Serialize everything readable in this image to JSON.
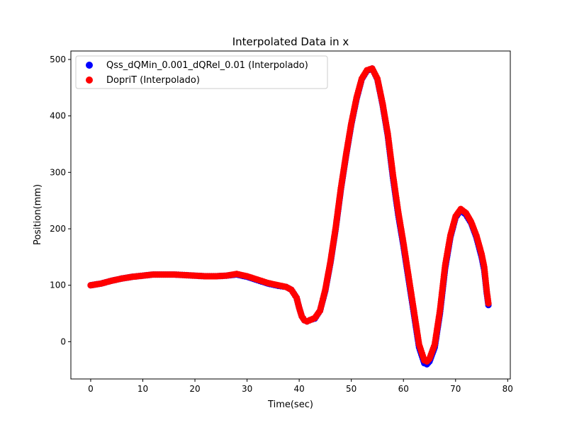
{
  "chart_data": {
    "type": "scatter",
    "title": "Interpolated Data in x",
    "xlabel": "Time(sec)",
    "ylabel": "Position(mm)",
    "xlim": [
      -3.8,
      80.5
    ],
    "ylim": [
      -66,
      515
    ],
    "xticks": [
      0,
      10,
      20,
      30,
      40,
      50,
      60,
      70,
      80
    ],
    "yticks": [
      0,
      100,
      200,
      300,
      400,
      500
    ],
    "grid": false,
    "legend_position": "top-left",
    "series": [
      {
        "name": "Qss_dQMin_0.001_dQRel_0.01 (Interpolado)",
        "color": "#0000ff",
        "curve": [
          [
            0,
            100
          ],
          [
            2,
            103
          ],
          [
            4,
            108
          ],
          [
            6,
            112
          ],
          [
            8,
            115
          ],
          [
            10,
            117
          ],
          [
            12,
            119
          ],
          [
            14,
            119
          ],
          [
            16,
            119
          ],
          [
            18,
            118
          ],
          [
            20,
            117
          ],
          [
            22,
            116
          ],
          [
            24,
            116
          ],
          [
            26,
            117
          ],
          [
            28,
            119
          ],
          [
            30,
            115
          ],
          [
            32,
            109
          ],
          [
            34,
            103
          ],
          [
            36,
            99
          ],
          [
            37.5,
            97
          ],
          [
            38.5,
            92
          ],
          [
            39.5,
            78
          ],
          [
            40,
            60
          ],
          [
            40.5,
            45
          ],
          [
            41,
            38
          ],
          [
            41.5,
            36
          ],
          [
            42,
            38
          ],
          [
            43,
            41
          ],
          [
            44,
            55
          ],
          [
            45,
            90
          ],
          [
            46,
            140
          ],
          [
            47,
            200
          ],
          [
            48,
            270
          ],
          [
            49,
            330
          ],
          [
            50,
            385
          ],
          [
            51,
            430
          ],
          [
            52,
            465
          ],
          [
            53,
            480
          ],
          [
            54,
            484
          ],
          [
            55,
            465
          ],
          [
            56,
            420
          ],
          [
            57,
            365
          ],
          [
            58,
            290
          ],
          [
            59,
            225
          ],
          [
            60,
            170
          ],
          [
            61,
            110
          ],
          [
            62,
            50
          ],
          [
            63,
            -10
          ],
          [
            64,
            -38
          ],
          [
            64.5,
            -40
          ],
          [
            65,
            -35
          ],
          [
            66,
            -10
          ],
          [
            67,
            50
          ],
          [
            68,
            130
          ],
          [
            69,
            185
          ],
          [
            70,
            220
          ],
          [
            71,
            233
          ],
          [
            72,
            225
          ],
          [
            73,
            210
          ],
          [
            74,
            185
          ],
          [
            75,
            150
          ],
          [
            75.5,
            127
          ],
          [
            76,
            85
          ],
          [
            76.3,
            65
          ]
        ]
      },
      {
        "name": "DopriT (Interpolado)",
        "color": "#ff0000",
        "curve": [
          [
            0,
            100
          ],
          [
            2,
            103
          ],
          [
            4,
            108
          ],
          [
            6,
            112
          ],
          [
            8,
            115
          ],
          [
            10,
            117
          ],
          [
            12,
            119
          ],
          [
            14,
            119
          ],
          [
            16,
            119
          ],
          [
            18,
            118
          ],
          [
            20,
            117
          ],
          [
            22,
            116
          ],
          [
            24,
            116
          ],
          [
            26,
            117
          ],
          [
            28,
            120
          ],
          [
            30,
            116
          ],
          [
            32,
            110
          ],
          [
            34,
            104
          ],
          [
            36,
            100
          ],
          [
            37.5,
            97
          ],
          [
            38.5,
            92
          ],
          [
            39.5,
            78
          ],
          [
            40,
            60
          ],
          [
            40.5,
            45
          ],
          [
            41,
            38
          ],
          [
            41.5,
            36
          ],
          [
            42,
            38
          ],
          [
            43,
            42
          ],
          [
            44,
            55
          ],
          [
            45,
            92
          ],
          [
            46,
            142
          ],
          [
            47,
            202
          ],
          [
            48,
            272
          ],
          [
            49,
            332
          ],
          [
            50,
            387
          ],
          [
            51,
            432
          ],
          [
            52,
            466
          ],
          [
            53,
            481
          ],
          [
            54,
            484
          ],
          [
            55,
            466
          ],
          [
            56,
            422
          ],
          [
            57,
            368
          ],
          [
            58,
            295
          ],
          [
            59,
            230
          ],
          [
            60,
            175
          ],
          [
            61,
            115
          ],
          [
            62,
            55
          ],
          [
            63,
            -5
          ],
          [
            64,
            -33
          ],
          [
            64.5,
            -35
          ],
          [
            65,
            -30
          ],
          [
            66,
            -5
          ],
          [
            67,
            55
          ],
          [
            68,
            135
          ],
          [
            69,
            188
          ],
          [
            70,
            222
          ],
          [
            71,
            235
          ],
          [
            72,
            228
          ],
          [
            73,
            212
          ],
          [
            74,
            188
          ],
          [
            75,
            155
          ],
          [
            75.5,
            132
          ],
          [
            76,
            88
          ],
          [
            76.3,
            68
          ]
        ]
      }
    ]
  }
}
